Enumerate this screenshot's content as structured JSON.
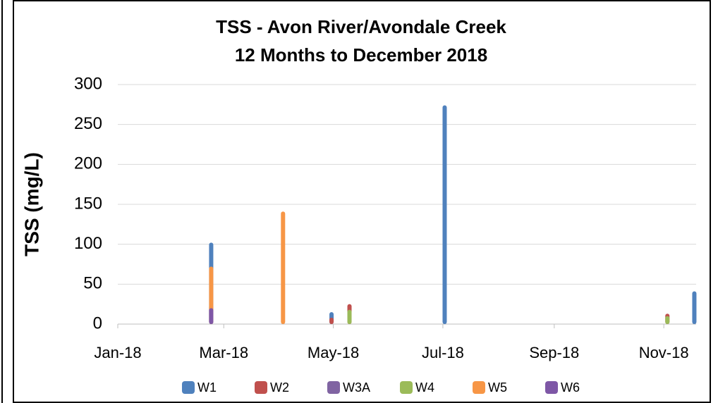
{
  "chart_data": {
    "type": "bar",
    "title": "TSS - Avon River/Avondale Creek",
    "subtitle": "12 Months to December 2018",
    "y_label": "TSS (mg/L)",
    "xlim": [
      0,
      322
    ],
    "ylim": [
      0,
      300
    ],
    "xticks": [
      {
        "value": 0,
        "label": "Jan-18"
      },
      {
        "value": 59,
        "label": "Mar-18"
      },
      {
        "value": 120,
        "label": "May-18"
      },
      {
        "value": 181,
        "label": "Jul-18"
      },
      {
        "value": 243,
        "label": "Sep-18"
      },
      {
        "value": 304,
        "label": "Nov-18"
      }
    ],
    "yticks": [
      0,
      50,
      100,
      150,
      200,
      250,
      300
    ],
    "grid": true,
    "legend": "bottom",
    "series": [
      {
        "name": "W1",
        "color": "#4f81bd",
        "x": [
          52,
          119,
          182,
          321
        ],
        "values": [
          102,
          15,
          274,
          41
        ]
      },
      {
        "name": "W2",
        "color": "#c0504d",
        "x": [
          119,
          129,
          306
        ],
        "values": [
          8,
          25,
          13
        ]
      },
      {
        "name": "W3A",
        "color": "#8064a2",
        "x": [
          52
        ],
        "values": [
          24
        ]
      },
      {
        "name": "W4",
        "color": "#9bbb59",
        "x": [
          129,
          306
        ],
        "values": [
          18,
          10
        ]
      },
      {
        "name": "W5",
        "color": "#f79646",
        "x": [
          52,
          92
        ],
        "values": [
          72,
          141
        ]
      },
      {
        "name": "W6",
        "color": "#7e57a6",
        "x": [
          52
        ],
        "values": [
          20
        ]
      }
    ]
  }
}
